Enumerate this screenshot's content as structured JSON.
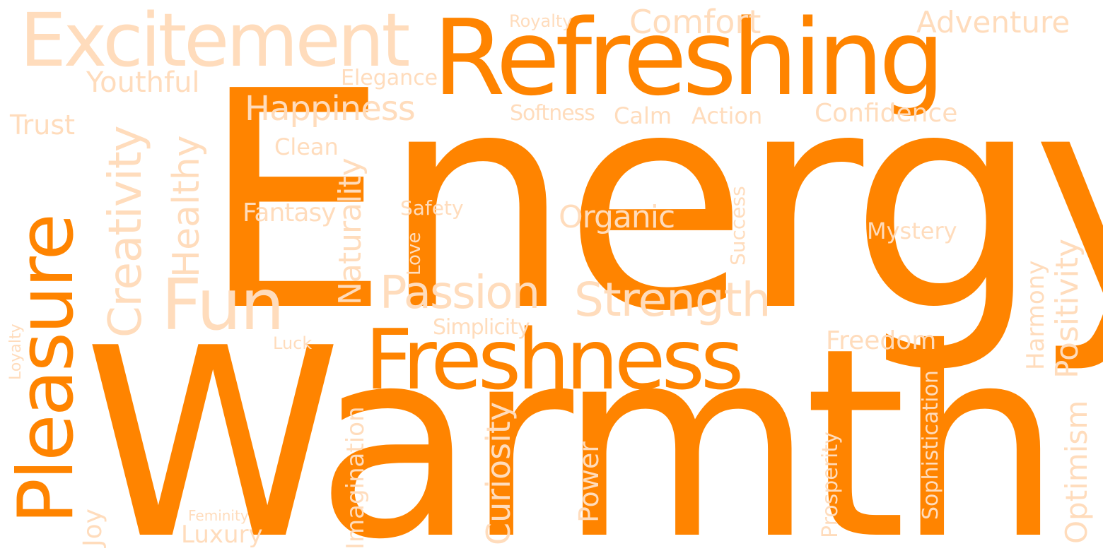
{
  "colors": {
    "background": "#ffffff",
    "strong": "#ff8400",
    "light": "#ffdcbc"
  },
  "words": [
    {
      "key": "energy",
      "text": "Energy",
      "emphasis": "strong"
    },
    {
      "key": "warmth",
      "text": "Warmth",
      "emphasis": "strong"
    },
    {
      "key": "refreshing",
      "text": "Refreshing",
      "emphasis": "strong"
    },
    {
      "key": "freshness",
      "text": "Freshness",
      "emphasis": "strong"
    },
    {
      "key": "pleasure",
      "text": "Pleasure",
      "emphasis": "strong"
    },
    {
      "key": "excitement",
      "text": "Excitement",
      "emphasis": "light"
    },
    {
      "key": "fun",
      "text": "Fun",
      "emphasis": "light"
    },
    {
      "key": "creativity",
      "text": "Creativity",
      "emphasis": "light"
    },
    {
      "key": "strength",
      "text": "Strength",
      "emphasis": "light"
    },
    {
      "key": "passion",
      "text": "Passion",
      "emphasis": "light"
    },
    {
      "key": "happiness",
      "text": "Happiness",
      "emphasis": "light"
    },
    {
      "key": "comfort",
      "text": "Comfort",
      "emphasis": "light"
    },
    {
      "key": "adventure",
      "text": "Adventure",
      "emphasis": "light"
    },
    {
      "key": "youthful",
      "text": "Youthful",
      "emphasis": "light"
    },
    {
      "key": "elegance",
      "text": "Elegance",
      "emphasis": "light"
    },
    {
      "key": "royalty",
      "text": "Royalty",
      "emphasis": "light"
    },
    {
      "key": "softness",
      "text": "Softness",
      "emphasis": "light"
    },
    {
      "key": "calm",
      "text": "Calm",
      "emphasis": "light"
    },
    {
      "key": "action",
      "text": "Action",
      "emphasis": "light"
    },
    {
      "key": "confidence",
      "text": "Confidence",
      "emphasis": "light"
    },
    {
      "key": "trust",
      "text": "Trust",
      "emphasis": "light"
    },
    {
      "key": "clean",
      "text": "Clean",
      "emphasis": "light"
    },
    {
      "key": "fantasy",
      "text": "Fantasy",
      "emphasis": "light"
    },
    {
      "key": "safety",
      "text": "Safety",
      "emphasis": "light"
    },
    {
      "key": "organic",
      "text": "Organic",
      "emphasis": "light"
    },
    {
      "key": "mystery",
      "text": "Mystery",
      "emphasis": "light"
    },
    {
      "key": "simplicity",
      "text": "Simplicity",
      "emphasis": "light"
    },
    {
      "key": "freedom",
      "text": "Freedom",
      "emphasis": "light"
    },
    {
      "key": "luck",
      "text": "Luck",
      "emphasis": "light"
    },
    {
      "key": "luxury",
      "text": "Luxury",
      "emphasis": "light"
    },
    {
      "key": "feminity",
      "text": "Feminity",
      "emphasis": "light"
    },
    {
      "key": "healthy",
      "text": "Healthy",
      "emphasis": "light"
    },
    {
      "key": "naturality",
      "text": "Naturality",
      "emphasis": "light"
    },
    {
      "key": "love",
      "text": "Love",
      "emphasis": "light"
    },
    {
      "key": "success",
      "text": "Success",
      "emphasis": "light"
    },
    {
      "key": "harmony",
      "text": "Harmony",
      "emphasis": "light"
    },
    {
      "key": "positivity",
      "text": "Positivity",
      "emphasis": "light"
    },
    {
      "key": "loyalty",
      "text": "Loyalty",
      "emphasis": "light"
    },
    {
      "key": "joy",
      "text": "Joy",
      "emphasis": "light"
    },
    {
      "key": "imagination",
      "text": "Imagination",
      "emphasis": "light"
    },
    {
      "key": "curiosity",
      "text": "Curiosity",
      "emphasis": "light"
    },
    {
      "key": "power",
      "text": "Power",
      "emphasis": "light"
    },
    {
      "key": "prosperity",
      "text": "Prosperity",
      "emphasis": "light"
    },
    {
      "key": "sophistication",
      "text": "Sophistication",
      "emphasis": "light"
    },
    {
      "key": "optimism",
      "text": "Optimism",
      "emphasis": "light"
    }
  ]
}
